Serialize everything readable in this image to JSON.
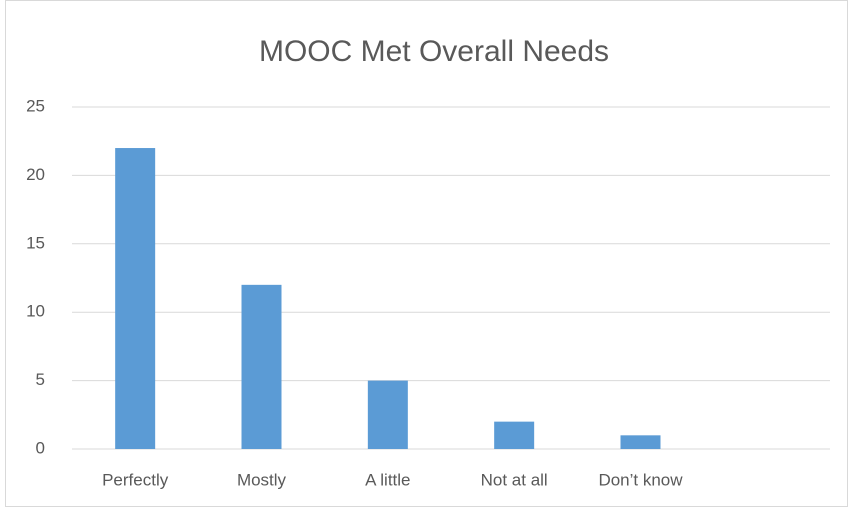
{
  "chart_data": {
    "type": "bar",
    "title": "MOOC Met Overall Needs",
    "categories": [
      "Perfectly",
      "Mostly",
      "A little",
      "Not at all",
      "Don’t know",
      null
    ],
    "values": [
      22,
      12,
      5,
      2,
      1,
      null
    ],
    "color": "#5b9bd5",
    "ylim": [
      0,
      25
    ],
    "yticks": [
      0,
      5,
      10,
      15,
      20,
      25
    ],
    "grid": true
  }
}
